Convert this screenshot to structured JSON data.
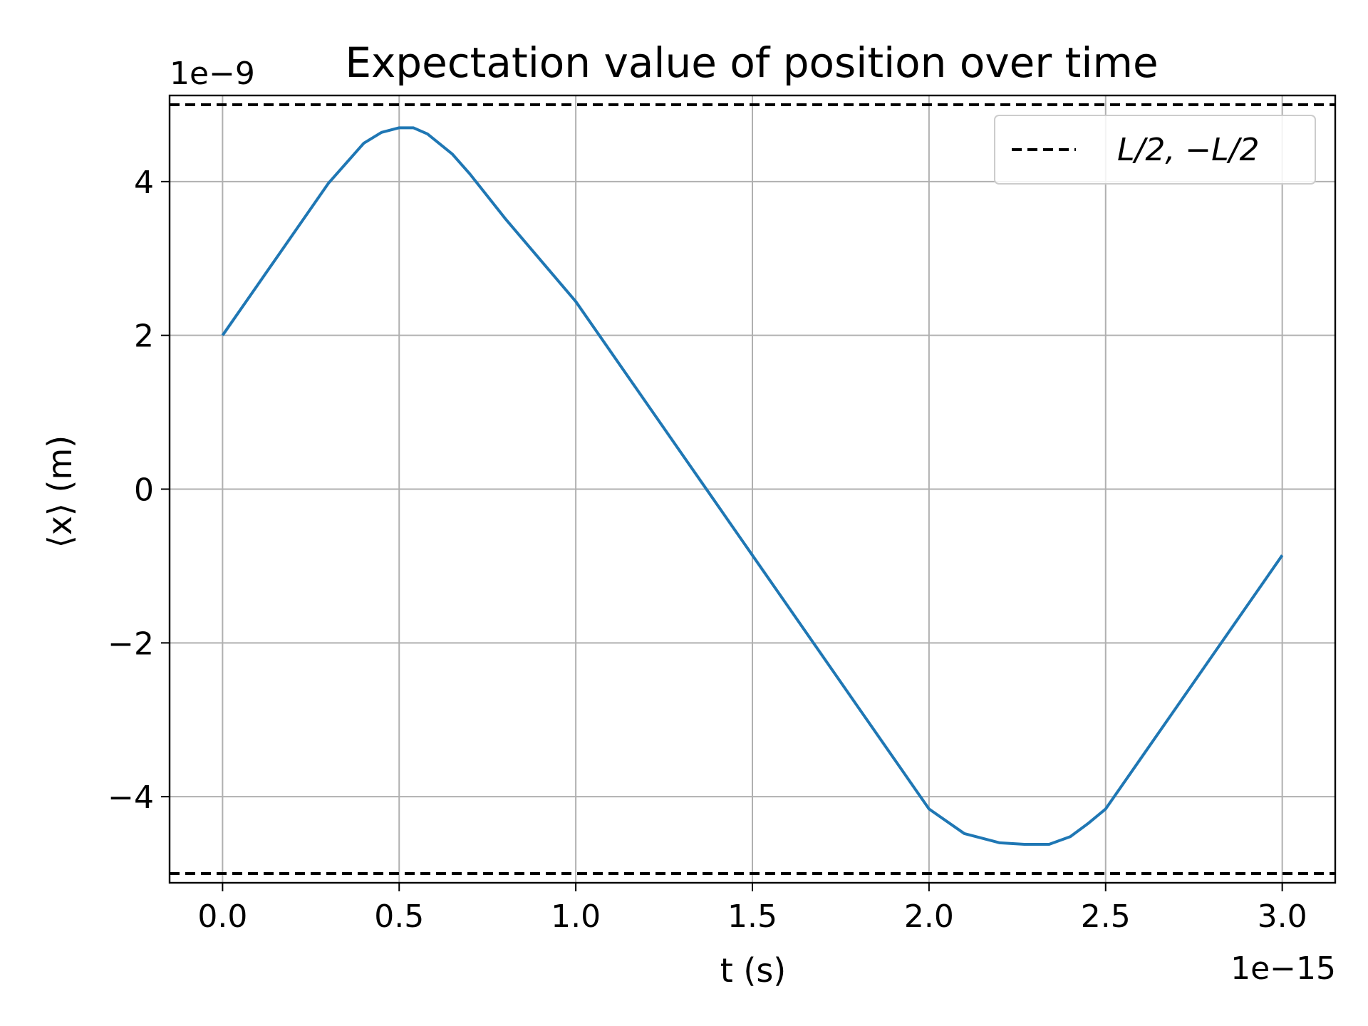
{
  "chart_data": {
    "type": "line",
    "title": "Expectation value of position over time",
    "xlabel": "t (s)",
    "ylabel": "⟨x⟩ (m)",
    "x_offset_label": "1e−15",
    "y_offset_label": "1e−9",
    "xlim": [
      -1.5e-16,
      3.15e-15
    ],
    "ylim": [
      -5.12e-09,
      5.12e-09
    ],
    "grid": true,
    "legend_position": "top-right",
    "x_ticks": [
      0.0,
      5e-16,
      1e-15,
      1.5e-15,
      2e-15,
      2.5e-15,
      3e-15
    ],
    "x_tick_labels": [
      "0.0",
      "0.5",
      "1.0",
      "1.5",
      "2.0",
      "2.5",
      "3.0"
    ],
    "y_ticks": [
      -4e-09,
      -2e-09,
      0,
      2e-09,
      4e-09
    ],
    "y_tick_labels": [
      "−4",
      "−2",
      "0",
      "2",
      "4"
    ],
    "series": [
      {
        "name": "",
        "color": "#1f77b4",
        "style": "solid",
        "x": [
          0.0,
          1e-16,
          2e-16,
          3e-16,
          4e-16,
          4.5e-16,
          5e-16,
          5.4e-16,
          5.8e-16,
          6.5e-16,
          7e-16,
          8e-16,
          9e-16,
          1e-15,
          1.2e-15,
          1.4e-15,
          1.5e-15,
          1.6e-15,
          1.8e-15,
          2e-15,
          2.1e-15,
          2.2e-15,
          2.27e-15,
          2.34e-15,
          2.4e-15,
          2.45e-15,
          2.5e-15,
          2.6e-15,
          2.7e-15,
          2.8e-15,
          2.9e-15,
          3e-15
        ],
        "y": [
          2e-09,
          2.66e-09,
          3.32e-09,
          3.98e-09,
          4.5e-09,
          4.64e-09,
          4.7e-09,
          4.7e-09,
          4.62e-09,
          4.36e-09,
          4.1e-09,
          3.52e-09,
          2.98e-09,
          2.44e-09,
          1.12e-09,
          -2e-10,
          -8.6e-10,
          -1.52e-09,
          -2.84e-09,
          -4.16e-09,
          -4.48e-09,
          -4.6e-09,
          -4.62e-09,
          -4.62e-09,
          -4.52e-09,
          -4.35e-09,
          -4.16e-09,
          -3.5e-09,
          -2.84e-09,
          -2.18e-09,
          -1.52e-09,
          -8.6e-10
        ]
      },
      {
        "name": "L/2, −L/2",
        "color": "#000000",
        "style": "dashed",
        "x": [
          -1.5e-16,
          3.15e-15
        ],
        "y": [
          5e-09,
          5e-09
        ]
      },
      {
        "name": "",
        "color": "#000000",
        "style": "dashed",
        "x": [
          -1.5e-16,
          3.15e-15
        ],
        "y": [
          -5e-09,
          -5e-09
        ]
      }
    ]
  }
}
